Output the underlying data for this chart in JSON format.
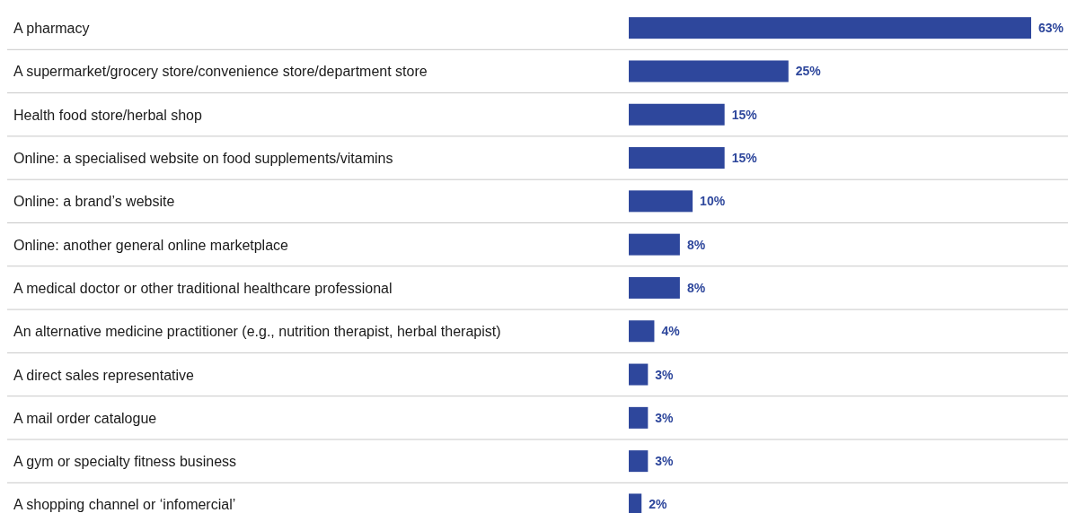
{
  "chart_data": {
    "type": "bar",
    "orientation": "horizontal",
    "color": "#2e479c",
    "categories": [
      "A pharmacy",
      "A supermarket/grocery store/convenience store/department store",
      "Health food store/herbal shop",
      "Online: a specialised website on food supplements/vitamins",
      "Online: a brand’s website",
      "Online: another general online marketplace",
      "A medical doctor or other traditional healthcare professional",
      "An alternative medicine practitioner (e.g., nutrition therapist, herbal therapist)",
      "A direct sales representative",
      "A mail order catalogue",
      "A gym or specialty fitness business",
      "A shopping channel or ‘infomercial’"
    ],
    "values": [
      63,
      25,
      15,
      15,
      10,
      8,
      8,
      4,
      3,
      3,
      3,
      2
    ],
    "value_labels": [
      "63%",
      "25%",
      "15%",
      "15%",
      "10%",
      "8%",
      "8%",
      "4%",
      "3%",
      "3%",
      "3%",
      "2%"
    ]
  }
}
